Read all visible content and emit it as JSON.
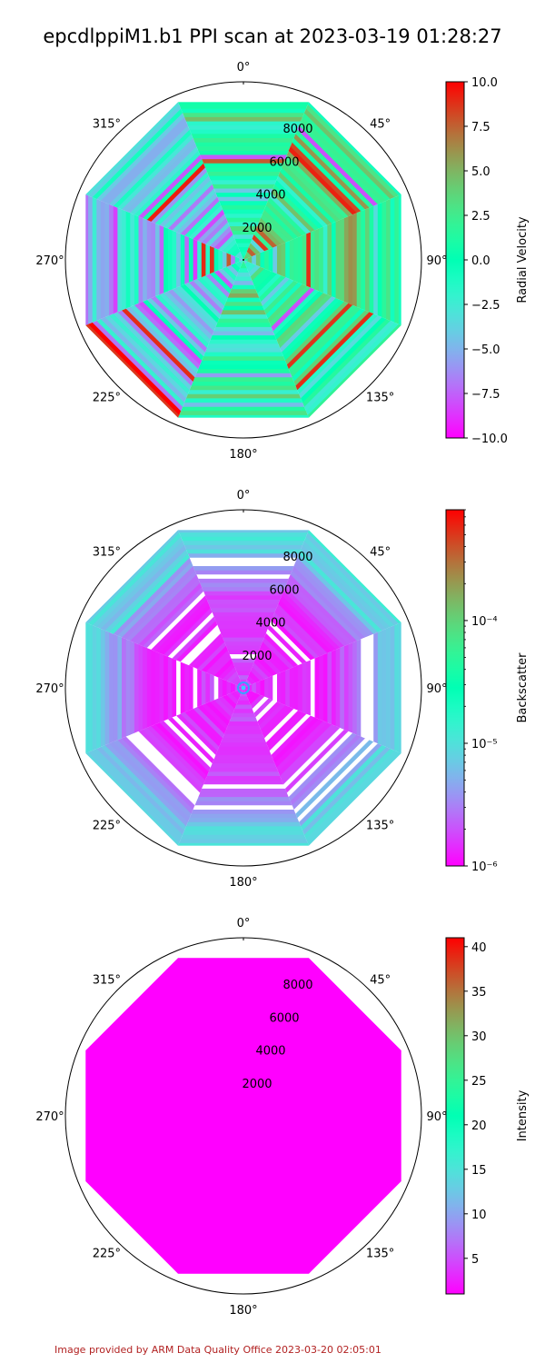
{
  "title": "epcdlppiM1.b1 PPI scan at 2023-03-19 01:28:27",
  "footer": "Image provided by ARM Data Quality Office 2023-03-20 02:05:01",
  "chart_data": [
    {
      "type": "heatmap",
      "projection": "polar",
      "theta_zero": "north",
      "theta_direction": "clockwise",
      "theta_ticks": [
        "0°",
        "45°",
        "90°",
        "135°",
        "180°",
        "225°",
        "270°",
        "315°"
      ],
      "r_ticks": [
        2000,
        4000,
        6000,
        8000
      ],
      "r_tick_labels": [
        "2000",
        "4000",
        "6000",
        "8000"
      ],
      "rlim": [
        0,
        10000
      ],
      "azimuths_deg": [
        0,
        45,
        90,
        135,
        180,
        225,
        270,
        315
      ],
      "max_range": 9600,
      "colormap": "rainbow",
      "colorbar": {
        "label": "Radial Velocity",
        "scale": "linear",
        "range": [
          -10,
          10
        ],
        "ticks": [
          -10,
          -7.5,
          -5,
          -2.5,
          0,
          2.5,
          5,
          7.5,
          10
        ],
        "tick_labels": [
          "−10.0",
          "−7.5",
          "−5.0",
          "−2.5",
          "0.0",
          "2.5",
          "5.0",
          "7.5",
          "10.0"
        ]
      },
      "appearance": "noisy striped field spanning the full colormap; mean near 0 with greens dominating the north, east and south sectors and blues dominating the west sector"
    },
    {
      "type": "heatmap",
      "projection": "polar",
      "theta_zero": "north",
      "theta_direction": "clockwise",
      "theta_ticks": [
        "0°",
        "45°",
        "90°",
        "135°",
        "180°",
        "225°",
        "270°",
        "315°"
      ],
      "r_ticks": [
        2000,
        4000,
        6000,
        8000
      ],
      "r_tick_labels": [
        "2000",
        "4000",
        "6000",
        "8000"
      ],
      "rlim": [
        0,
        10000
      ],
      "azimuths_deg": [
        0,
        45,
        90,
        135,
        180,
        225,
        270,
        315
      ],
      "max_range": 9600,
      "colormap": "rainbow",
      "colorbar": {
        "label": "Backscatter",
        "scale": "log",
        "range": [
          1e-06,
          0.0008
        ],
        "ticks": [
          1e-06,
          1e-05,
          0.0001
        ],
        "tick_labels": [
          "10⁻⁶",
          "10⁻⁵",
          "10⁻⁴"
        ]
      },
      "appearance": "mostly violet (about 1e-6) inside 6000 m, increasing to blue and cyan (about 1e-5) toward the outer ranges, with white gaps where no data"
    },
    {
      "type": "heatmap",
      "projection": "polar",
      "theta_zero": "north",
      "theta_direction": "clockwise",
      "theta_ticks": [
        "0°",
        "45°",
        "90°",
        "135°",
        "180°",
        "225°",
        "270°",
        "315°"
      ],
      "r_ticks": [
        2000,
        4000,
        6000,
        8000
      ],
      "r_tick_labels": [
        "2000",
        "4000",
        "6000",
        "8000"
      ],
      "rlim": [
        0,
        10000
      ],
      "azimuths_deg": [
        0,
        45,
        90,
        135,
        180,
        225,
        270,
        315
      ],
      "max_range": 9600,
      "colormap": "rainbow",
      "colorbar": {
        "label": "Intensity",
        "scale": "linear",
        "range": [
          1,
          41
        ],
        "ticks": [
          5,
          10,
          15,
          20,
          25,
          30,
          35,
          40
        ],
        "tick_labels": [
          "5",
          "10",
          "15",
          "20",
          "25",
          "30",
          "35",
          "40"
        ]
      },
      "appearance": "uniform violet (about 1) everywhere inside the scan octagon",
      "fill_value": 1
    }
  ]
}
